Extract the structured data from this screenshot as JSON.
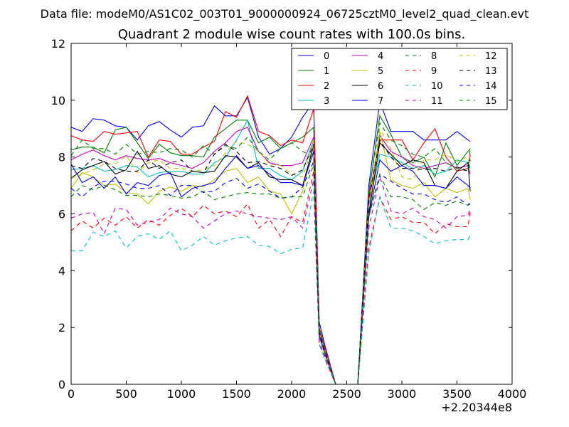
{
  "header": {
    "file_label": "Data file: modeM0/AS1C02_003T01_9000000924_06725cztM0_level2_quad_clean.evt",
    "title": "Quadrant 2 module wise count rates with 100.0s bins."
  },
  "chart_data": {
    "type": "line",
    "title": "Quadrant 2 module wise count rates with 100.0s bins.",
    "xlabel": "",
    "ylabel": "",
    "x_offset_label": "+2.20344e8",
    "xlim": [
      0,
      4000
    ],
    "ylim": [
      0,
      12
    ],
    "xticks": [
      0,
      500,
      1000,
      1500,
      2000,
      2500,
      3000,
      3500,
      4000
    ],
    "yticks": [
      0,
      2,
      4,
      6,
      8,
      10,
      12
    ],
    "grid": false,
    "legend_position": "top-right",
    "x": [
      0,
      100,
      200,
      300,
      400,
      500,
      600,
      700,
      800,
      900,
      1000,
      1100,
      1200,
      1300,
      1400,
      1500,
      1600,
      1700,
      1800,
      1900,
      2000,
      2100,
      2200,
      2250,
      2300,
      2400,
      2500,
      2600,
      2700,
      2800,
      2900,
      3000,
      3100,
      3200,
      3300,
      3400,
      3500,
      3600,
      3620
    ],
    "series": [
      {
        "name": "0",
        "color": "#0000ff",
        "dash": "solid",
        "values": [
          9.05,
          8.9,
          9.35,
          9.3,
          9.1,
          9.05,
          8.6,
          9.1,
          9.25,
          8.95,
          8.7,
          9.05,
          9.1,
          9.8,
          9.45,
          9.45,
          10.1,
          8.7,
          8.1,
          8.3,
          8.7,
          9.4,
          9.95,
          2.2,
          1.4,
          0,
          0,
          0,
          7.0,
          9.95,
          8.9,
          8.9,
          8.9,
          8.6,
          8.6,
          8.6,
          8.9,
          8.6,
          8.55
        ]
      },
      {
        "name": "1",
        "color": "#008000",
        "dash": "solid",
        "values": [
          8.25,
          8.35,
          8.35,
          8.15,
          8.95,
          9.05,
          8.5,
          7.95,
          8.45,
          8.15,
          8.05,
          8.05,
          8.0,
          8.7,
          9.0,
          9.3,
          9.3,
          8.5,
          8.7,
          8.3,
          8.5,
          8.7,
          9.05,
          2.0,
          1.3,
          0,
          0,
          0,
          6.7,
          9.45,
          8.8,
          8.0,
          7.8,
          8.0,
          7.3,
          8.5,
          7.7,
          8.2,
          8.3
        ]
      },
      {
        "name": "2",
        "color": "#ff0000",
        "dash": "solid",
        "values": [
          8.75,
          8.6,
          8.55,
          8.9,
          8.8,
          8.85,
          8.9,
          8.0,
          8.6,
          8.55,
          8.1,
          8.1,
          8.35,
          8.55,
          9.6,
          9.4,
          10.15,
          8.9,
          8.75,
          8.4,
          8.6,
          8.5,
          9.7,
          2.0,
          1.3,
          0,
          0,
          0,
          6.6,
          8.6,
          8.6,
          8.6,
          7.9,
          8.5,
          9.0,
          8.0,
          7.5,
          7.6,
          8.1
        ]
      },
      {
        "name": "3",
        "color": "#00bfbf",
        "dash": "solid",
        "values": [
          7.55,
          7.6,
          7.7,
          7.5,
          7.55,
          7.7,
          7.65,
          7.3,
          7.45,
          7.5,
          7.5,
          7.4,
          7.4,
          7.8,
          8.0,
          8.6,
          9.3,
          7.6,
          7.6,
          7.35,
          7.2,
          7.5,
          8.6,
          1.9,
          1.2,
          0,
          0,
          0,
          6.3,
          8.1,
          8.0,
          7.8,
          7.6,
          7.7,
          7.4,
          7.5,
          7.9,
          7.8,
          7.6
        ]
      },
      {
        "name": "4",
        "color": "#bf00bf",
        "dash": "solid",
        "values": [
          7.9,
          8.1,
          8.25,
          8.05,
          7.9,
          8.05,
          7.95,
          7.9,
          7.95,
          7.8,
          7.7,
          7.6,
          7.8,
          8.2,
          8.5,
          8.9,
          9.05,
          8.2,
          7.8,
          7.7,
          7.7,
          7.8,
          8.7,
          1.9,
          1.2,
          0,
          0,
          0,
          6.4,
          8.75,
          8.2,
          8.0,
          7.7,
          7.6,
          7.7,
          7.8,
          7.6,
          7.7,
          7.4
        ]
      },
      {
        "name": "5",
        "color": "#bfbf00",
        "dash": "solid",
        "values": [
          6.9,
          7.45,
          7.3,
          7.0,
          7.05,
          6.75,
          6.7,
          6.35,
          6.8,
          6.95,
          6.8,
          7.0,
          6.95,
          7.2,
          7.5,
          7.6,
          7.1,
          7.3,
          6.8,
          6.7,
          6.0,
          6.8,
          8.6,
          1.8,
          1.1,
          0,
          0,
          0,
          6.0,
          8.9,
          7.2,
          7.0,
          6.9,
          7.1,
          6.6,
          6.9,
          6.75,
          6.9,
          6.5
        ]
      },
      {
        "name": "6",
        "color": "#000000",
        "dash": "solid",
        "values": [
          7.25,
          7.55,
          7.7,
          7.85,
          7.4,
          7.55,
          8.2,
          7.6,
          7.7,
          7.4,
          7.3,
          7.5,
          7.45,
          7.5,
          8.05,
          8.0,
          7.6,
          7.8,
          7.3,
          7.2,
          7.2,
          7.0,
          8.4,
          1.8,
          1.1,
          0,
          0,
          0,
          6.0,
          8.5,
          8.1,
          7.7,
          7.9,
          7.8,
          7.0,
          6.9,
          7.5,
          7.8,
          6.8
        ]
      },
      {
        "name": "7",
        "color": "#0000ff",
        "dash": "solid",
        "values": [
          7.75,
          7.1,
          7.3,
          6.9,
          7.3,
          6.7,
          7.1,
          7.0,
          7.35,
          7.45,
          6.6,
          6.9,
          7.0,
          7.1,
          7.6,
          8.05,
          7.6,
          7.7,
          7.4,
          7.1,
          7.1,
          7.0,
          8.2,
          1.7,
          1.1,
          0,
          0,
          0,
          5.9,
          7.9,
          7.5,
          7.7,
          7.5,
          7.0,
          7.0,
          6.9,
          7.3,
          7.0,
          6.9
        ]
      },
      {
        "name": "8",
        "color": "#008000",
        "dash": "dashed",
        "values": [
          8.05,
          8.6,
          8.3,
          8.3,
          8.1,
          8.45,
          8.1,
          8.2,
          8.15,
          8.3,
          8.25,
          8.0,
          8.4,
          8.1,
          8.4,
          8.3,
          8.7,
          8.2,
          7.9,
          8.3,
          8.5,
          8.2,
          8.0,
          2.0,
          1.2,
          0,
          0,
          0,
          6.8,
          9.2,
          8.6,
          8.4,
          8.1,
          8.0,
          8.3,
          7.8,
          7.6,
          7.5,
          8.3
        ]
      },
      {
        "name": "9",
        "color": "#ff0000",
        "dash": "dashed",
        "values": [
          5.4,
          5.75,
          5.5,
          5.85,
          5.6,
          5.9,
          5.5,
          5.8,
          5.6,
          5.95,
          6.2,
          5.9,
          6.3,
          6.0,
          6.1,
          5.9,
          6.35,
          5.5,
          5.8,
          5.2,
          5.9,
          5.7,
          7.5,
          1.5,
          0.9,
          0,
          0,
          0,
          4.8,
          6.6,
          5.8,
          5.9,
          5.7,
          5.7,
          5.3,
          5.65,
          5.55,
          5.55,
          6.1
        ]
      },
      {
        "name": "10",
        "color": "#00bfbf",
        "dash": "dashed",
        "values": [
          4.7,
          4.7,
          5.35,
          5.2,
          5.4,
          4.8,
          5.2,
          5.3,
          5.1,
          5.4,
          4.7,
          4.9,
          5.2,
          4.9,
          5.05,
          5.15,
          5.2,
          4.9,
          4.85,
          4.6,
          4.75,
          4.8,
          6.8,
          1.4,
          0.9,
          0,
          0,
          0,
          4.6,
          6.6,
          5.5,
          5.5,
          5.4,
          5.2,
          4.95,
          5.05,
          5.1,
          5.1,
          5.25
        ]
      },
      {
        "name": "11",
        "color": "#bf00bf",
        "dash": "dashed",
        "values": [
          5.85,
          6.0,
          6.05,
          5.3,
          6.2,
          6.15,
          5.6,
          5.7,
          5.8,
          6.2,
          6.0,
          5.9,
          5.5,
          5.75,
          6.0,
          6.1,
          6.0,
          5.9,
          5.85,
          5.8,
          5.9,
          5.5,
          7.2,
          1.5,
          1.0,
          0,
          0,
          0,
          5.5,
          7.3,
          6.1,
          6.0,
          6.2,
          5.9,
          5.8,
          5.5,
          5.9,
          5.95,
          6.2
        ]
      },
      {
        "name": "12",
        "color": "#bfbf00",
        "dash": "dashed",
        "values": [
          7.25,
          7.4,
          7.55,
          7.75,
          7.75,
          8.05,
          7.45,
          7.8,
          7.9,
          7.6,
          7.6,
          7.5,
          7.55,
          7.7,
          8.15,
          8.55,
          8.45,
          8.2,
          7.75,
          7.7,
          7.4,
          7.3,
          8.45,
          1.8,
          1.2,
          0,
          0,
          0,
          6.4,
          9.0,
          8.3,
          7.3,
          7.2,
          7.9,
          7.9,
          8.1,
          7.85,
          8.0,
          8.0
        ]
      },
      {
        "name": "13",
        "color": "#000000",
        "dash": "dashed",
        "values": [
          7.7,
          7.6,
          7.95,
          7.85,
          7.6,
          7.5,
          7.5,
          7.9,
          7.6,
          7.8,
          7.9,
          7.5,
          7.45,
          8.1,
          8.45,
          8.2,
          7.8,
          7.85,
          7.7,
          7.6,
          7.35,
          7.55,
          8.45,
          1.8,
          1.2,
          0,
          0,
          0,
          6.5,
          8.6,
          8.0,
          7.6,
          7.6,
          7.55,
          7.6,
          7.5,
          7.65,
          7.5,
          7.9
        ]
      },
      {
        "name": "14",
        "color": "#0000ff",
        "dash": "dashed",
        "values": [
          6.9,
          6.6,
          6.95,
          7.15,
          7.15,
          7.05,
          6.9,
          6.9,
          7.0,
          6.65,
          7.0,
          7.0,
          6.75,
          6.8,
          7.1,
          7.25,
          6.9,
          7.05,
          6.8,
          6.55,
          6.6,
          6.95,
          7.85,
          1.7,
          1.1,
          0,
          0,
          0,
          5.9,
          7.4,
          7.15,
          6.9,
          6.7,
          6.7,
          6.5,
          6.4,
          6.6,
          6.3,
          6.35
        ]
      },
      {
        "name": "15",
        "color": "#008000",
        "dash": "dashed",
        "values": [
          6.6,
          7.0,
          6.85,
          7.0,
          6.85,
          6.65,
          6.65,
          6.6,
          6.7,
          6.65,
          6.55,
          6.6,
          6.8,
          6.5,
          6.6,
          6.7,
          6.75,
          6.7,
          6.7,
          6.55,
          6.6,
          6.6,
          7.75,
          1.7,
          1.1,
          0,
          0,
          0,
          5.9,
          7.35,
          6.6,
          6.6,
          6.5,
          6.15,
          6.4,
          6.3,
          6.45,
          6.3,
          6.45
        ]
      }
    ]
  }
}
